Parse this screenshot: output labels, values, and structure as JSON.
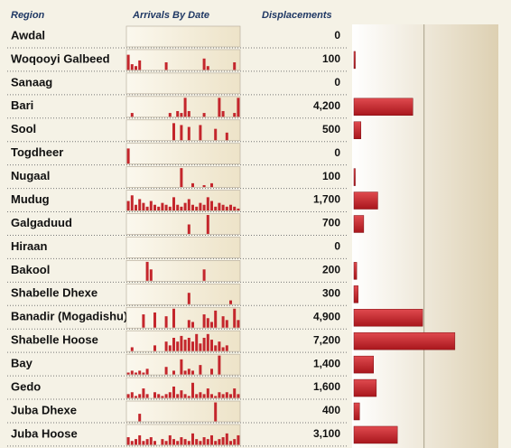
{
  "chart_data": {
    "type": "bar",
    "headers": [
      "Region",
      "Arrivals By Date",
      "Displacements"
    ],
    "categories": [
      "Awdal",
      "Woqooyi Galbeed",
      "Sanaag",
      "Bari",
      "Sool",
      "Togdheer",
      "Nugaal",
      "Mudug",
      "Galgaduud",
      "Hiraan",
      "Bakool",
      "Shabelle Dhexe",
      "Banadir (Mogadishu)",
      "Shabelle Hoose",
      "Bay",
      "Gedo",
      "Juba Dhexe",
      "Juba Hoose"
    ],
    "values": [
      0,
      100,
      0,
      4200,
      500,
      0,
      100,
      1700,
      700,
      0,
      200,
      300,
      4900,
      7200,
      1400,
      1600,
      400,
      3100
    ],
    "value_labels": [
      "0",
      "100",
      "0",
      "4,200",
      "500",
      "0",
      "100",
      "1,700",
      "700",
      "0",
      "200",
      "300",
      "4,900",
      "7,200",
      "1,400",
      "1,600",
      "400",
      "3,100"
    ],
    "color": "#c4262c",
    "xlim": [
      0,
      11200
    ],
    "grid_lines": [
      5000
    ],
    "sparkline_ylim": [
      0,
      10
    ],
    "sparklines": [
      [
        0,
        0,
        0,
        0,
        0,
        0,
        0,
        0,
        0,
        0,
        0,
        0,
        0,
        0,
        0,
        0,
        0,
        0,
        0,
        0,
        0,
        0,
        0,
        0,
        0,
        0,
        0,
        0,
        0,
        0
      ],
      [
        8,
        3,
        2,
        5,
        0,
        0,
        0,
        0,
        0,
        0,
        4,
        0,
        0,
        0,
        0,
        0,
        0,
        0,
        0,
        0,
        6,
        2,
        0,
        0,
        0,
        0,
        0,
        0,
        4,
        0
      ],
      [
        0,
        0,
        0,
        0,
        0,
        0,
        0,
        0,
        0,
        0,
        0,
        0,
        0,
        0,
        0,
        0,
        0,
        0,
        0,
        0,
        0,
        0,
        0,
        0,
        0,
        0,
        0,
        0,
        0,
        0
      ],
      [
        0,
        2,
        0,
        0,
        0,
        0,
        0,
        0,
        0,
        0,
        0,
        2,
        0,
        3,
        2,
        10,
        3,
        0,
        0,
        0,
        2,
        0,
        0,
        0,
        10,
        3,
        0,
        0,
        2,
        10
      ],
      [
        0,
        0,
        0,
        0,
        0,
        0,
        0,
        0,
        0,
        0,
        0,
        0,
        9,
        0,
        8,
        0,
        7,
        0,
        0,
        8,
        0,
        0,
        0,
        6,
        0,
        0,
        4,
        0,
        0,
        0
      ],
      [
        8,
        0,
        0,
        0,
        0,
        0,
        0,
        0,
        0,
        0,
        0,
        0,
        0,
        0,
        0,
        0,
        0,
        0,
        0,
        0,
        0,
        0,
        0,
        0,
        0,
        0,
        0,
        0,
        0,
        0
      ],
      [
        0,
        0,
        0,
        0,
        0,
        0,
        0,
        0,
        0,
        0,
        0,
        0,
        0,
        0,
        10,
        0,
        0,
        2,
        0,
        0,
        1,
        0,
        2,
        0,
        0,
        0,
        0,
        0,
        0,
        0
      ],
      [
        5,
        8,
        3,
        6,
        4,
        2,
        5,
        3,
        2,
        4,
        3,
        2,
        7,
        3,
        2,
        4,
        6,
        3,
        2,
        4,
        3,
        7,
        5,
        2,
        4,
        3,
        2,
        3,
        2,
        1
      ],
      [
        0,
        0,
        0,
        0,
        0,
        0,
        0,
        0,
        0,
        0,
        0,
        0,
        0,
        0,
        0,
        0,
        5,
        0,
        0,
        0,
        0,
        10,
        0,
        0,
        0,
        0,
        0,
        0,
        0,
        0
      ],
      [
        0,
        0,
        0,
        0,
        0,
        0,
        0,
        0,
        0,
        0,
        0,
        0,
        0,
        0,
        0,
        0,
        0,
        0,
        0,
        0,
        0,
        0,
        0,
        0,
        0,
        0,
        0,
        0,
        0,
        0
      ],
      [
        0,
        0,
        0,
        0,
        0,
        10,
        6,
        0,
        0,
        0,
        0,
        0,
        0,
        0,
        0,
        0,
        0,
        0,
        0,
        0,
        6,
        0,
        0,
        0,
        0,
        0,
        0,
        0,
        0,
        0
      ],
      [
        0,
        0,
        0,
        0,
        0,
        0,
        0,
        0,
        0,
        0,
        0,
        0,
        0,
        0,
        0,
        0,
        6,
        0,
        0,
        0,
        0,
        0,
        0,
        0,
        0,
        0,
        0,
        2,
        0,
        0
      ],
      [
        0,
        0,
        0,
        0,
        7,
        0,
        0,
        8,
        0,
        0,
        6,
        0,
        10,
        0,
        0,
        0,
        4,
        3,
        0,
        0,
        7,
        5,
        3,
        9,
        0,
        6,
        4,
        0,
        10,
        4
      ],
      [
        0,
        2,
        0,
        0,
        0,
        0,
        0,
        3,
        0,
        0,
        5,
        3,
        7,
        5,
        8,
        6,
        7,
        5,
        9,
        4,
        7,
        9,
        6,
        3,
        5,
        2,
        3,
        0,
        0,
        0
      ],
      [
        1,
        2,
        1,
        2,
        1,
        3,
        0,
        0,
        0,
        0,
        4,
        0,
        2,
        0,
        8,
        2,
        3,
        2,
        0,
        5,
        0,
        0,
        3,
        0,
        10,
        0,
        0,
        0,
        0,
        0
      ],
      [
        2,
        3,
        1,
        2,
        5,
        2,
        0,
        3,
        2,
        1,
        2,
        3,
        6,
        2,
        4,
        2,
        1,
        8,
        2,
        3,
        2,
        5,
        2,
        1,
        3,
        2,
        3,
        2,
        5,
        2
      ],
      [
        0,
        0,
        0,
        4,
        0,
        0,
        0,
        0,
        0,
        0,
        0,
        0,
        0,
        0,
        0,
        0,
        0,
        0,
        0,
        0,
        0,
        0,
        0,
        10,
        0,
        0,
        0,
        0,
        0,
        0
      ],
      [
        4,
        2,
        3,
        5,
        2,
        3,
        4,
        2,
        0,
        3,
        2,
        5,
        3,
        2,
        4,
        3,
        2,
        6,
        3,
        2,
        4,
        3,
        5,
        2,
        3,
        4,
        6,
        2,
        3,
        5
      ]
    ]
  }
}
